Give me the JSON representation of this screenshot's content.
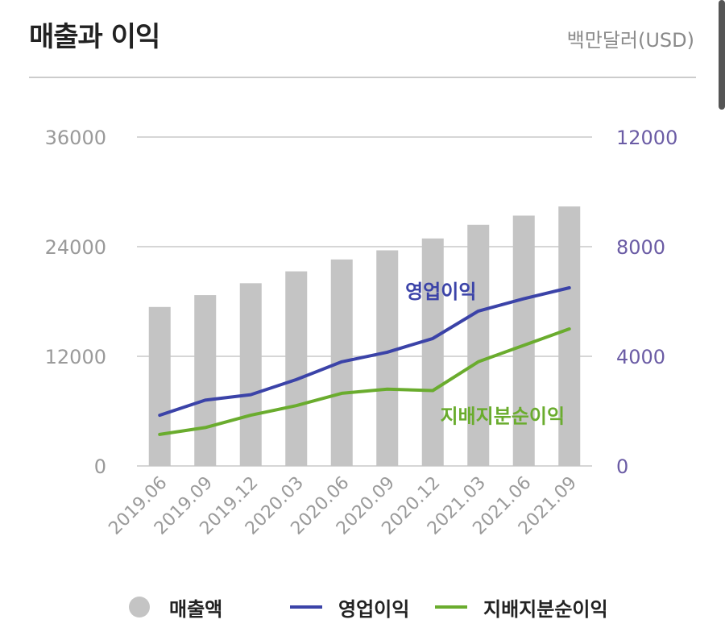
{
  "header": {
    "title": "매출과 이익",
    "unit": "백만달러(USD)"
  },
  "colors": {
    "revenue": "#c4c4c4",
    "operating": "#3b43a8",
    "net": "#6aac2e",
    "left_axis": "#9a9a9a",
    "right_axis": "#6b5ca5"
  },
  "chart_data": {
    "type": "bar",
    "categories": [
      "2019.06",
      "2019.09",
      "2019.12",
      "2020.03",
      "2020.06",
      "2020.09",
      "2020.12",
      "2021.03",
      "2021.06",
      "2021.09"
    ],
    "y_left": {
      "ticks": [
        "0",
        "12000",
        "24000",
        "36000"
      ],
      "ylim": [
        0,
        36000
      ]
    },
    "y_right": {
      "ticks": [
        "0",
        "4000",
        "8000",
        "12000"
      ],
      "ylim": [
        0,
        12000
      ]
    },
    "series": [
      {
        "name": "매출액",
        "type": "bar",
        "axis": "left",
        "values": [
          17400,
          18700,
          20000,
          21300,
          22600,
          23600,
          24900,
          26400,
          27400,
          28400
        ]
      },
      {
        "name": "영업이익",
        "type": "line",
        "axis": "right",
        "values": [
          1850,
          2400,
          2600,
          3150,
          3800,
          4150,
          4650,
          5650,
          6100,
          6500
        ]
      },
      {
        "name": "지배지분순이익",
        "type": "line",
        "axis": "right",
        "values": [
          1150,
          1400,
          1850,
          2200,
          2650,
          2800,
          2750,
          3800,
          4400,
          5000
        ]
      }
    ],
    "annotations": [
      {
        "text": "영업이익",
        "series": "영업이익"
      },
      {
        "text": "지배지분순이익",
        "series": "지배지분순이익"
      }
    ]
  },
  "legend": [
    {
      "label": "매출액",
      "kind": "dot"
    },
    {
      "label": "영업이익",
      "kind": "line"
    },
    {
      "label": "지배지분순이익",
      "kind": "line"
    }
  ]
}
